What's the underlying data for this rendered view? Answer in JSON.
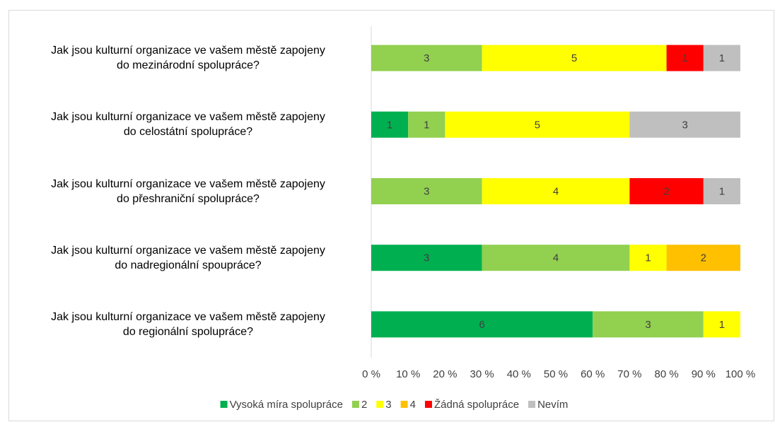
{
  "chart_data": {
    "type": "bar",
    "orientation": "horizontal",
    "stacking": "percent",
    "categories": [
      "Jak jsou kulturní organizace ve vašem městě zapojeny\ndo mezinárodní spolupráce?",
      "Jak jsou kulturní organizace ve vašem městě zapojeny\ndo celostátní spolupráce?",
      "Jak jsou kulturní organizace ve vašem městě zapojeny\ndo přeshraniční spolupráce?",
      "Jak jsou kulturní organizace ve vašem městě zapojeny\ndo nadregionální spoupráce?",
      "Jak jsou kulturní organizace ve vašem městě zapojeny\ndo regionální spolupráce?"
    ],
    "series": [
      {
        "name": "Vysoká míra spolupráce",
        "color": "#00b050",
        "values": [
          null,
          1,
          null,
          3,
          6
        ]
      },
      {
        "name": "2",
        "color": "#92d050",
        "values": [
          3,
          1,
          3,
          4,
          3
        ]
      },
      {
        "name": "3",
        "color": "#ffff00",
        "values": [
          5,
          5,
          4,
          1,
          1
        ]
      },
      {
        "name": "4",
        "color": "#ffc000",
        "values": [
          null,
          null,
          null,
          2,
          null
        ]
      },
      {
        "name": "Žádná spolupráce",
        "color": "#ff0000",
        "values": [
          1,
          null,
          2,
          null,
          null
        ]
      },
      {
        "name": "Nevím",
        "color": "#bfbfbf",
        "values": [
          1,
          3,
          1,
          null,
          null
        ]
      }
    ],
    "xlim": [
      0,
      100
    ],
    "xticks": [
      {
        "value": 0,
        "label": "0 %"
      },
      {
        "value": 10,
        "label": "10 %"
      },
      {
        "value": 20,
        "label": "20 %"
      },
      {
        "value": 30,
        "label": "30 %"
      },
      {
        "value": 40,
        "label": "40 %"
      },
      {
        "value": 50,
        "label": "50 %"
      },
      {
        "value": 60,
        "label": "60 %"
      },
      {
        "value": 70,
        "label": "70 %"
      },
      {
        "value": 80,
        "label": "80 %"
      },
      {
        "value": 90,
        "label": "90 %"
      },
      {
        "value": 100,
        "label": "100 %"
      }
    ],
    "legend": "bottom"
  }
}
